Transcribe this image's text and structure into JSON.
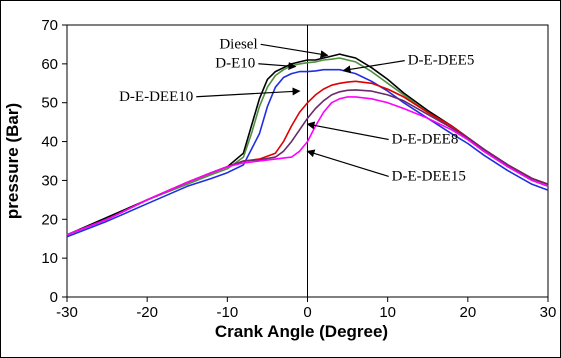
{
  "chart_data": {
    "type": "line",
    "title": "",
    "xlabel": "Crank Angle (Degree)",
    "ylabel": "pressure (Bar)",
    "xlim": [
      -30,
      30
    ],
    "ylim": [
      0,
      70
    ],
    "xticks": [
      -30,
      -20,
      -10,
      0,
      10,
      20,
      30
    ],
    "yticks": [
      0,
      10,
      20,
      30,
      40,
      50,
      60,
      70
    ],
    "grid": false,
    "legend": "none",
    "vertical_reference_line_x": 0,
    "series": [
      {
        "name": "Diesel",
        "color": "#000000",
        "points": [
          [
            -30,
            16
          ],
          [
            -25,
            20.5
          ],
          [
            -20,
            25
          ],
          [
            -15,
            29.5
          ],
          [
            -12,
            32
          ],
          [
            -10,
            33.5
          ],
          [
            -8,
            37
          ],
          [
            -7,
            44
          ],
          [
            -6,
            51
          ],
          [
            -5,
            56
          ],
          [
            -4,
            58
          ],
          [
            -3,
            59
          ],
          [
            -2,
            60
          ],
          [
            -1,
            60.5
          ],
          [
            0,
            61
          ],
          [
            1,
            61
          ],
          [
            2,
            61.5
          ],
          [
            3,
            62
          ],
          [
            4,
            62.5
          ],
          [
            5,
            62
          ],
          [
            6,
            61.5
          ],
          [
            8,
            59
          ],
          [
            10,
            56
          ],
          [
            12,
            52.5
          ],
          [
            15,
            48
          ],
          [
            18,
            44
          ],
          [
            20,
            41
          ],
          [
            22,
            38
          ],
          [
            25,
            34
          ],
          [
            28,
            30.5
          ],
          [
            30,
            29
          ]
        ]
      },
      {
        "name": "D-E-DEE5",
        "color": "#4f8f3f",
        "points": [
          [
            -30,
            16
          ],
          [
            -25,
            20
          ],
          [
            -20,
            25
          ],
          [
            -15,
            29
          ],
          [
            -12,
            31.5
          ],
          [
            -10,
            33
          ],
          [
            -8,
            36
          ],
          [
            -7,
            42
          ],
          [
            -6,
            49
          ],
          [
            -5,
            54
          ],
          [
            -4,
            57
          ],
          [
            -3,
            58.5
          ],
          [
            -2,
            59.5
          ],
          [
            -1,
            60
          ],
          [
            0,
            60.3
          ],
          [
            1,
            60.5
          ],
          [
            2,
            61
          ],
          [
            3,
            61.2
          ],
          [
            4,
            61.5
          ],
          [
            5,
            61
          ],
          [
            6,
            60.5
          ],
          [
            8,
            58
          ],
          [
            10,
            55
          ],
          [
            12,
            52
          ],
          [
            15,
            47.5
          ],
          [
            18,
            43.5
          ],
          [
            20,
            40.5
          ],
          [
            22,
            37.5
          ],
          [
            25,
            33.5
          ],
          [
            28,
            30
          ],
          [
            30,
            28.5
          ]
        ]
      },
      {
        "name": "D-E10",
        "color": "#1f2fe0",
        "points": [
          [
            -30,
            15.5
          ],
          [
            -25,
            19.5
          ],
          [
            -20,
            24
          ],
          [
            -15,
            28.5
          ],
          [
            -12,
            30.5
          ],
          [
            -10,
            32
          ],
          [
            -8,
            34
          ],
          [
            -6,
            42
          ],
          [
            -5,
            49
          ],
          [
            -4,
            54
          ],
          [
            -3,
            56.5
          ],
          [
            -2,
            57.5
          ],
          [
            -1,
            58
          ],
          [
            0,
            58
          ],
          [
            1,
            58.2
          ],
          [
            2,
            58.5
          ],
          [
            3,
            58.5
          ],
          [
            4,
            58.5
          ],
          [
            5,
            58
          ],
          [
            6,
            57.5
          ],
          [
            8,
            55.5
          ],
          [
            10,
            53
          ],
          [
            12,
            50
          ],
          [
            15,
            46
          ],
          [
            18,
            42
          ],
          [
            20,
            39.5
          ],
          [
            22,
            36.5
          ],
          [
            25,
            32.5
          ],
          [
            28,
            29
          ],
          [
            30,
            27.5
          ]
        ]
      },
      {
        "name": "D-E-DEE8",
        "color": "#e00000",
        "points": [
          [
            -30,
            16
          ],
          [
            -25,
            20
          ],
          [
            -20,
            25
          ],
          [
            -15,
            29.5
          ],
          [
            -12,
            32
          ],
          [
            -10,
            33.5
          ],
          [
            -8,
            35
          ],
          [
            -6,
            35.5
          ],
          [
            -4,
            37
          ],
          [
            -3,
            40
          ],
          [
            -2,
            44
          ],
          [
            -1,
            47.5
          ],
          [
            0,
            50
          ],
          [
            1,
            52
          ],
          [
            2,
            53.5
          ],
          [
            3,
            54.5
          ],
          [
            4,
            55
          ],
          [
            5,
            55.3
          ],
          [
            6,
            55.5
          ],
          [
            8,
            55
          ],
          [
            10,
            53.5
          ],
          [
            12,
            51.5
          ],
          [
            15,
            47.5
          ],
          [
            18,
            44
          ],
          [
            20,
            41
          ],
          [
            22,
            38
          ],
          [
            25,
            34
          ],
          [
            28,
            30.5
          ],
          [
            30,
            29
          ]
        ]
      },
      {
        "name": "D-E-DEE10",
        "color": "#6a2a6a",
        "points": [
          [
            -30,
            16
          ],
          [
            -25,
            20
          ],
          [
            -20,
            25
          ],
          [
            -15,
            29.5
          ],
          [
            -12,
            32
          ],
          [
            -10,
            33.5
          ],
          [
            -8,
            35
          ],
          [
            -6,
            35.3
          ],
          [
            -4,
            36
          ],
          [
            -3,
            37.5
          ],
          [
            -2,
            40
          ],
          [
            -1,
            43
          ],
          [
            0,
            46
          ],
          [
            1,
            48.5
          ],
          [
            2,
            50.5
          ],
          [
            3,
            52
          ],
          [
            4,
            52.8
          ],
          [
            5,
            53.2
          ],
          [
            6,
            53.3
          ],
          [
            8,
            53
          ],
          [
            10,
            52
          ],
          [
            12,
            50.5
          ],
          [
            15,
            47
          ],
          [
            18,
            43.5
          ],
          [
            20,
            41
          ],
          [
            22,
            38
          ],
          [
            25,
            34
          ],
          [
            28,
            30.5
          ],
          [
            30,
            29
          ]
        ]
      },
      {
        "name": "D-E-DEE15",
        "color": "#ff00ff",
        "points": [
          [
            -30,
            16
          ],
          [
            -25,
            20
          ],
          [
            -20,
            25
          ],
          [
            -15,
            29.5
          ],
          [
            -12,
            32
          ],
          [
            -10,
            33.5
          ],
          [
            -8,
            34.5
          ],
          [
            -6,
            35
          ],
          [
            -4,
            35.5
          ],
          [
            -2,
            36
          ],
          [
            -1,
            37.5
          ],
          [
            0,
            40
          ],
          [
            1,
            44
          ],
          [
            2,
            47.5
          ],
          [
            3,
            50
          ],
          [
            4,
            51
          ],
          [
            5,
            51.5
          ],
          [
            6,
            51.5
          ],
          [
            8,
            51
          ],
          [
            10,
            50
          ],
          [
            12,
            48.5
          ],
          [
            15,
            46
          ],
          [
            18,
            43
          ],
          [
            20,
            40.5
          ],
          [
            22,
            37.5
          ],
          [
            25,
            33.5
          ],
          [
            28,
            30
          ],
          [
            30,
            28.5
          ]
        ]
      }
    ],
    "annotations": [
      {
        "text": "Diesel",
        "label_x": -11,
        "label_y": 64,
        "arrow_to": [
          2.5,
          62.2
        ]
      },
      {
        "text": "D-E10",
        "label_x": -11.5,
        "label_y": 59,
        "arrow_to": [
          -1.5,
          59.3
        ]
      },
      {
        "text": "D-E-DEE5",
        "label_x": 12.5,
        "label_y": 59.8,
        "arrow_to": [
          4.5,
          58.3
        ]
      },
      {
        "text": "D-E-DEE10",
        "label_x": -23.5,
        "label_y": 50.5,
        "arrow_to": [
          -1,
          53
        ]
      },
      {
        "text": "D-E-DEE8",
        "label_x": 10.5,
        "label_y": 39.5,
        "arrow_to": [
          0,
          44.5
        ]
      },
      {
        "text": "D-E-DEE15",
        "label_x": 10.5,
        "label_y": 30,
        "arrow_to": [
          0,
          37.5
        ]
      }
    ]
  }
}
